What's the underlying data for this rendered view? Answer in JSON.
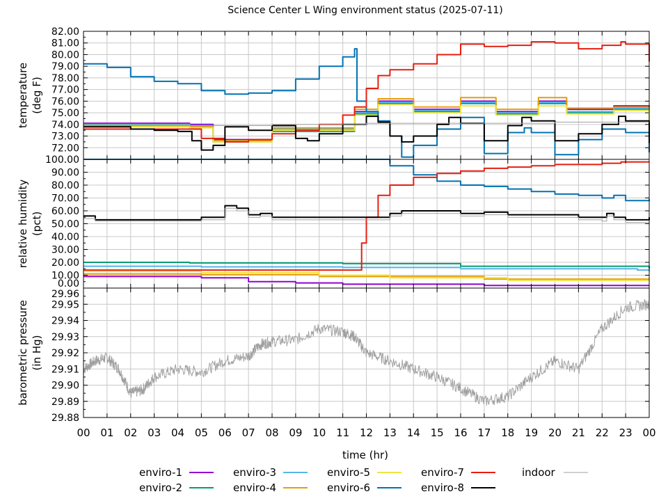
{
  "chart_data": {
    "type": "line",
    "title": "Science Center L Wing environment status (2025-07-11)",
    "xlabel": "time (hr)",
    "xlim": [
      0,
      24
    ],
    "xticks": [
      "00",
      "01",
      "02",
      "03",
      "04",
      "05",
      "06",
      "07",
      "08",
      "09",
      "10",
      "11",
      "12",
      "13",
      "14",
      "15",
      "16",
      "17",
      "18",
      "19",
      "20",
      "21",
      "22",
      "23",
      "00"
    ],
    "grid": true,
    "legend_placement": "bottom",
    "legend": [
      {
        "name": "enviro-1",
        "color": "#9400d3"
      },
      {
        "name": "enviro-2",
        "color": "#009e73"
      },
      {
        "name": "enviro-3",
        "color": "#56b4e9"
      },
      {
        "name": "enviro-4",
        "color": "#e69f00"
      },
      {
        "name": "enviro-5",
        "color": "#f0e442"
      },
      {
        "name": "enviro-6",
        "color": "#0072b2"
      },
      {
        "name": "enviro-7",
        "color": "#e51e10"
      },
      {
        "name": "enviro-8",
        "color": "#000000"
      },
      {
        "name": "indoor",
        "color": "#a0a0a0"
      }
    ],
    "panels": [
      {
        "ylabel": [
          "temperature",
          "(deg F)"
        ],
        "ylim": [
          71,
          82
        ],
        "yticks": [
          "72.00",
          "73.00",
          "74.00",
          "75.00",
          "76.00",
          "77.00",
          "78.00",
          "79.00",
          "80.00",
          "81.00",
          "82.00"
        ],
        "series": [
          {
            "name": "enviro-1",
            "x": [
              0,
              4.5,
              5.5,
              8,
              11.5,
              12.5,
              14,
              16,
              17.5,
              19.3,
              20.5,
              22.5,
              24
            ],
            "y": [
              74.1,
              74.0,
              72.7,
              73.5,
              75.1,
              76.0,
              75.3,
              76.0,
              75.1,
              76.0,
              75.3,
              75.6,
              74.7
            ]
          },
          {
            "name": "enviro-2",
            "x": [
              0,
              4.5,
              5.5,
              8,
              11.5,
              12.5,
              14,
              16,
              17.5,
              19.3,
              20.5,
              22.5,
              24
            ],
            "y": [
              73.9,
              73.9,
              72.5,
              73.4,
              74.9,
              75.8,
              75.1,
              75.8,
              74.9,
              75.8,
              75.0,
              75.3,
              74.3
            ]
          },
          {
            "name": "enviro-3",
            "x": [
              0,
              4.5,
              5.5,
              8,
              11.5,
              12.5,
              14,
              16,
              17.5,
              19.3,
              20.5,
              22.5,
              24
            ],
            "y": [
              74.0,
              73.9,
              72.6,
              73.6,
              75.0,
              75.9,
              75.2,
              75.9,
              75.0,
              75.9,
              75.1,
              75.4,
              74.3
            ]
          },
          {
            "name": "enviro-4",
            "x": [
              0,
              4.5,
              5.5,
              8,
              11.5,
              12.5,
              14,
              16,
              17.5,
              19.3,
              20.5,
              22.5,
              24
            ],
            "y": [
              73.9,
              73.8,
              72.6,
              73.7,
              75.3,
              76.2,
              75.5,
              76.3,
              75.3,
              76.3,
              75.4,
              75.5,
              74.3
            ]
          },
          {
            "name": "enviro-5",
            "x": [
              0,
              4.5,
              5.5,
              8,
              11.5,
              12.5,
              14,
              16,
              17.5,
              19.3,
              20.5,
              22.5,
              24
            ],
            "y": [
              73.8,
              73.7,
              72.5,
              73.5,
              74.8,
              75.7,
              75.0,
              75.6,
              74.8,
              75.6,
              74.9,
              75.2,
              74.1
            ]
          },
          {
            "name": "enviro-6",
            "x": [
              0,
              1,
              2,
              3,
              4,
              5,
              6,
              7,
              8,
              9,
              10,
              11,
              11.5,
              11.6,
              12,
              12.5,
              13,
              13.5,
              14,
              15,
              16,
              17,
              18,
              18.7,
              19,
              20,
              21,
              22,
              23,
              24
            ],
            "y": [
              79.2,
              78.9,
              78.1,
              77.7,
              77.5,
              76.9,
              76.6,
              76.7,
              76.9,
              77.9,
              79.0,
              79.8,
              80.5,
              76.0,
              75.1,
              74.3,
              73.0,
              71.2,
              72.2,
              73.6,
              74.6,
              71.5,
              73.3,
              73.7,
              73.3,
              71.4,
              72.7,
              73.6,
              73.3,
              71.6
            ]
          },
          {
            "name": "enviro-7",
            "x": [
              0,
              4,
              5,
              6,
              7,
              8,
              9,
              10,
              11,
              11.5,
              12,
              12.5,
              13,
              14,
              15,
              16,
              17,
              18,
              19,
              20,
              21,
              22,
              22.8,
              23,
              24
            ],
            "y": [
              73.6,
              73.6,
              72.8,
              72.5,
              72.7,
              73.2,
              73.5,
              74.0,
              74.8,
              75.5,
              77.1,
              78.2,
              78.7,
              79.2,
              80.0,
              80.9,
              80.7,
              80.8,
              81.1,
              81.0,
              80.5,
              80.8,
              81.1,
              80.9,
              79.4
            ]
          },
          {
            "name": "enviro-8",
            "x": [
              0,
              1,
              2,
              3,
              4,
              4.6,
              5,
              5.5,
              6,
              7,
              8,
              9,
              9.5,
              10,
              11,
              12,
              12.5,
              13,
              13.5,
              14,
              15,
              15.5,
              16,
              17,
              18,
              18.6,
              19,
              20,
              21,
              22,
              22.7,
              23,
              24
            ],
            "y": [
              73.8,
              73.8,
              73.6,
              73.5,
              73.4,
              72.6,
              71.8,
              72.2,
              73.8,
              73.5,
              73.9,
              72.8,
              72.6,
              73.2,
              74.0,
              74.7,
              74.2,
              73.0,
              72.5,
              73.0,
              74.0,
              74.6,
              74.1,
              72.6,
              73.9,
              74.6,
              74.3,
              72.6,
              73.2,
              74.0,
              74.7,
              74.3,
              72.4
            ]
          },
          {
            "name": "indoor",
            "x": [
              0,
              6,
              8,
              10,
              12,
              14,
              16,
              18,
              20,
              22,
              24
            ],
            "y": [
              73.9,
              73.9,
              74.0,
              74.0,
              74.1,
              74.1,
              74.1,
              74.1,
              74.2,
              74.2,
              74.2
            ]
          }
        ]
      },
      {
        "ylabel": [
          "relative humidity",
          "(pct)"
        ],
        "ylim": [
          0,
          100
        ],
        "yticks": [
          "0.00",
          "10.00",
          "20.00",
          "30.00",
          "40.00",
          "50.00",
          "60.00",
          "70.00",
          "80.00",
          "90.00",
          "100.00"
        ],
        "series": [
          {
            "name": "enviro-1",
            "x": [
              0,
              5,
              7,
              9,
              11,
              17,
              24
            ],
            "y": [
              9,
              8,
              5,
              4,
              3,
              2,
              2
            ]
          },
          {
            "name": "enviro-2",
            "x": [
              0,
              4.5,
              11,
              16,
              24
            ],
            "y": [
              20,
              19.5,
              19,
              17,
              15
            ]
          },
          {
            "name": "enviro-3",
            "x": [
              0,
              5,
              11,
              16,
              23.5,
              24
            ],
            "y": [
              17,
              16.5,
              16,
              15,
              14,
              13
            ]
          },
          {
            "name": "enviro-4",
            "x": [
              0,
              5,
              10,
              17,
              24
            ],
            "y": [
              11,
              10.5,
              9,
              7,
              7
            ]
          },
          {
            "name": "enviro-5",
            "x": [
              0,
              5,
              10,
              13,
              18,
              24
            ],
            "y": [
              13,
              12,
              10,
              8,
              6,
              6
            ]
          },
          {
            "name": "enviro-6",
            "x": [
              0,
              12.5,
              13,
              14,
              15,
              16,
              17,
              18,
              19,
              20,
              21,
              22,
              22.5,
              23,
              24
            ],
            "y": [
              100,
              100,
              95,
              88,
              83,
              80,
              79,
              77,
              75,
              73,
              72,
              70,
              72,
              68,
              69
            ]
          },
          {
            "name": "enviro-7",
            "x": [
              0,
              11.7,
              11.8,
              12,
              12.5,
              13,
              14,
              15,
              16,
              17,
              18,
              19,
              20,
              21,
              22,
              22.8,
              24
            ],
            "y": [
              14,
              14,
              35,
              55,
              72,
              80,
              86,
              89,
              91,
              93,
              94,
              95,
              96,
              96,
              97,
              98,
              98
            ]
          },
          {
            "name": "enviro-8",
            "x": [
              0,
              0.5,
              4,
              5,
              5.8,
              6,
              6.5,
              7,
              7.5,
              8,
              11,
              13,
              13.5,
              16,
              17,
              18,
              21,
              22,
              22.2,
              22.5,
              23,
              24
            ],
            "y": [
              56,
              53,
              53,
              55,
              55,
              64,
              62,
              57,
              58,
              55,
              55,
              58,
              60,
              58,
              59,
              57,
              55,
              55,
              58,
              55,
              53,
              55
            ]
          },
          {
            "name": "indoor",
            "x": [
              0,
              0.5,
              4,
              5,
              5.8,
              6,
              6.5,
              7,
              7.5,
              8,
              11,
              13,
              13.5,
              16,
              17,
              18,
              21,
              22,
              22.2,
              22.5,
              23,
              24
            ],
            "y": [
              54,
              52,
              52,
              53,
              53,
              62,
              60,
              55,
              56,
              53,
              53,
              56,
              58,
              56,
              57,
              55,
              53,
              52,
              56,
              53,
              51,
              53
            ]
          }
        ]
      },
      {
        "ylabel": [
          "barometric pressure",
          "(in Hg)"
        ],
        "ylim": [
          29.88,
          29.96
        ],
        "yticks": [
          "29.88",
          "29.89",
          "29.90",
          "29.91",
          "29.92",
          "29.93",
          "29.94",
          "29.95",
          "29.96"
        ],
        "series": [
          {
            "name": "indoor",
            "x": [
              0,
              0.5,
              1,
              1.5,
              2,
              2.5,
              3,
              4,
              5,
              6,
              7,
              7.5,
              8,
              9,
              10,
              11,
              11.5,
              12,
              13,
              14,
              15,
              16,
              17,
              18,
              19,
              20,
              21,
              22,
              23,
              24
            ],
            "y": [
              29.91,
              29.915,
              29.917,
              29.91,
              29.895,
              29.897,
              29.905,
              29.91,
              29.908,
              29.915,
              29.918,
              29.925,
              29.927,
              29.928,
              29.935,
              29.933,
              29.93,
              29.92,
              29.915,
              29.91,
              29.905,
              29.898,
              29.89,
              29.893,
              29.905,
              29.915,
              29.91,
              29.935,
              29.948,
              29.95
            ]
          }
        ]
      }
    ]
  }
}
